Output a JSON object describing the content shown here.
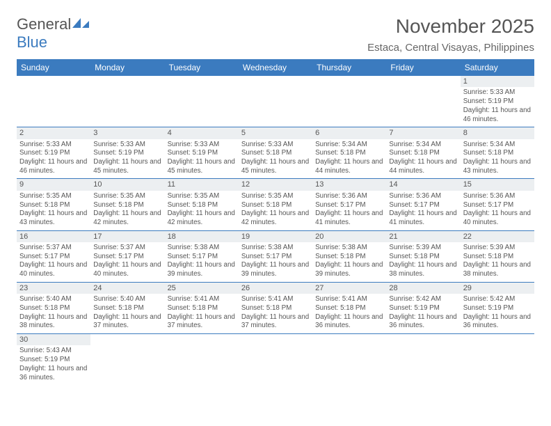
{
  "logo": {
    "text1": "General",
    "text2": "Blue",
    "shape_color": "#3b7bbf"
  },
  "title": "November 2025",
  "location": "Estaca, Central Visayas, Philippines",
  "header_bg": "#3b7bbf",
  "header_fg": "#ffffff",
  "row_divider": "#3b7bbf",
  "daynum_bg": "#eceff1",
  "text_color": "#555555",
  "dayHeaders": [
    "Sunday",
    "Monday",
    "Tuesday",
    "Wednesday",
    "Thursday",
    "Friday",
    "Saturday"
  ],
  "weeks": [
    [
      null,
      null,
      null,
      null,
      null,
      null,
      {
        "n": "1",
        "sr": "Sunrise: 5:33 AM",
        "ss": "Sunset: 5:19 PM",
        "dl": "Daylight: 11 hours and 46 minutes."
      }
    ],
    [
      {
        "n": "2",
        "sr": "Sunrise: 5:33 AM",
        "ss": "Sunset: 5:19 PM",
        "dl": "Daylight: 11 hours and 46 minutes."
      },
      {
        "n": "3",
        "sr": "Sunrise: 5:33 AM",
        "ss": "Sunset: 5:19 PM",
        "dl": "Daylight: 11 hours and 45 minutes."
      },
      {
        "n": "4",
        "sr": "Sunrise: 5:33 AM",
        "ss": "Sunset: 5:19 PM",
        "dl": "Daylight: 11 hours and 45 minutes."
      },
      {
        "n": "5",
        "sr": "Sunrise: 5:33 AM",
        "ss": "Sunset: 5:18 PM",
        "dl": "Daylight: 11 hours and 45 minutes."
      },
      {
        "n": "6",
        "sr": "Sunrise: 5:34 AM",
        "ss": "Sunset: 5:18 PM",
        "dl": "Daylight: 11 hours and 44 minutes."
      },
      {
        "n": "7",
        "sr": "Sunrise: 5:34 AM",
        "ss": "Sunset: 5:18 PM",
        "dl": "Daylight: 11 hours and 44 minutes."
      },
      {
        "n": "8",
        "sr": "Sunrise: 5:34 AM",
        "ss": "Sunset: 5:18 PM",
        "dl": "Daylight: 11 hours and 43 minutes."
      }
    ],
    [
      {
        "n": "9",
        "sr": "Sunrise: 5:35 AM",
        "ss": "Sunset: 5:18 PM",
        "dl": "Daylight: 11 hours and 43 minutes."
      },
      {
        "n": "10",
        "sr": "Sunrise: 5:35 AM",
        "ss": "Sunset: 5:18 PM",
        "dl": "Daylight: 11 hours and 42 minutes."
      },
      {
        "n": "11",
        "sr": "Sunrise: 5:35 AM",
        "ss": "Sunset: 5:18 PM",
        "dl": "Daylight: 11 hours and 42 minutes."
      },
      {
        "n": "12",
        "sr": "Sunrise: 5:35 AM",
        "ss": "Sunset: 5:18 PM",
        "dl": "Daylight: 11 hours and 42 minutes."
      },
      {
        "n": "13",
        "sr": "Sunrise: 5:36 AM",
        "ss": "Sunset: 5:17 PM",
        "dl": "Daylight: 11 hours and 41 minutes."
      },
      {
        "n": "14",
        "sr": "Sunrise: 5:36 AM",
        "ss": "Sunset: 5:17 PM",
        "dl": "Daylight: 11 hours and 41 minutes."
      },
      {
        "n": "15",
        "sr": "Sunrise: 5:36 AM",
        "ss": "Sunset: 5:17 PM",
        "dl": "Daylight: 11 hours and 40 minutes."
      }
    ],
    [
      {
        "n": "16",
        "sr": "Sunrise: 5:37 AM",
        "ss": "Sunset: 5:17 PM",
        "dl": "Daylight: 11 hours and 40 minutes."
      },
      {
        "n": "17",
        "sr": "Sunrise: 5:37 AM",
        "ss": "Sunset: 5:17 PM",
        "dl": "Daylight: 11 hours and 40 minutes."
      },
      {
        "n": "18",
        "sr": "Sunrise: 5:38 AM",
        "ss": "Sunset: 5:17 PM",
        "dl": "Daylight: 11 hours and 39 minutes."
      },
      {
        "n": "19",
        "sr": "Sunrise: 5:38 AM",
        "ss": "Sunset: 5:17 PM",
        "dl": "Daylight: 11 hours and 39 minutes."
      },
      {
        "n": "20",
        "sr": "Sunrise: 5:38 AM",
        "ss": "Sunset: 5:18 PM",
        "dl": "Daylight: 11 hours and 39 minutes."
      },
      {
        "n": "21",
        "sr": "Sunrise: 5:39 AM",
        "ss": "Sunset: 5:18 PM",
        "dl": "Daylight: 11 hours and 38 minutes."
      },
      {
        "n": "22",
        "sr": "Sunrise: 5:39 AM",
        "ss": "Sunset: 5:18 PM",
        "dl": "Daylight: 11 hours and 38 minutes."
      }
    ],
    [
      {
        "n": "23",
        "sr": "Sunrise: 5:40 AM",
        "ss": "Sunset: 5:18 PM",
        "dl": "Daylight: 11 hours and 38 minutes."
      },
      {
        "n": "24",
        "sr": "Sunrise: 5:40 AM",
        "ss": "Sunset: 5:18 PM",
        "dl": "Daylight: 11 hours and 37 minutes."
      },
      {
        "n": "25",
        "sr": "Sunrise: 5:41 AM",
        "ss": "Sunset: 5:18 PM",
        "dl": "Daylight: 11 hours and 37 minutes."
      },
      {
        "n": "26",
        "sr": "Sunrise: 5:41 AM",
        "ss": "Sunset: 5:18 PM",
        "dl": "Daylight: 11 hours and 37 minutes."
      },
      {
        "n": "27",
        "sr": "Sunrise: 5:41 AM",
        "ss": "Sunset: 5:18 PM",
        "dl": "Daylight: 11 hours and 36 minutes."
      },
      {
        "n": "28",
        "sr": "Sunrise: 5:42 AM",
        "ss": "Sunset: 5:19 PM",
        "dl": "Daylight: 11 hours and 36 minutes."
      },
      {
        "n": "29",
        "sr": "Sunrise: 5:42 AM",
        "ss": "Sunset: 5:19 PM",
        "dl": "Daylight: 11 hours and 36 minutes."
      }
    ],
    [
      {
        "n": "30",
        "sr": "Sunrise: 5:43 AM",
        "ss": "Sunset: 5:19 PM",
        "dl": "Daylight: 11 hours and 36 minutes."
      },
      null,
      null,
      null,
      null,
      null,
      null
    ]
  ]
}
